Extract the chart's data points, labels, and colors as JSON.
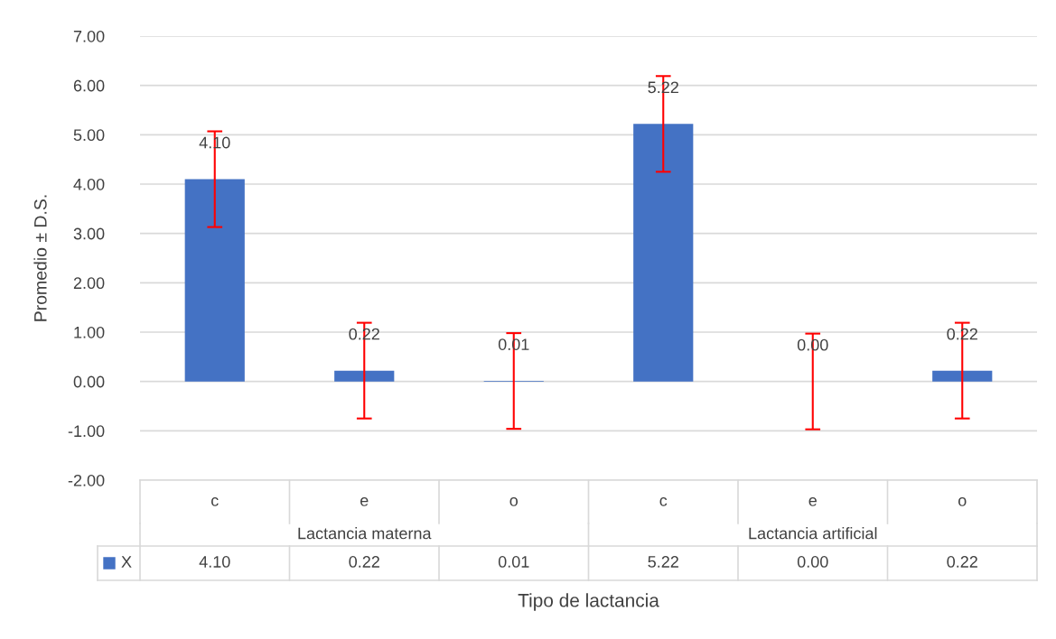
{
  "chart_data": {
    "type": "bar",
    "xlabel": "Tipo de lactancia",
    "ylabel": "Promedio ± D.S.",
    "categories": [
      "c",
      "e",
      "o",
      "c",
      "e",
      "o"
    ],
    "series": [
      {
        "name": "X",
        "color": "#4472c4",
        "values": [
          4.1,
          0.22,
          0.01,
          5.22,
          0.0,
          0.22
        ],
        "errors": [
          0.97,
          0.97,
          0.97,
          0.97,
          0.97,
          0.97
        ],
        "value_labels": [
          "4.10",
          "0.22",
          "0.01",
          "5.22",
          "0.00",
          "0.22"
        ]
      }
    ],
    "annotations": [
      "Lactancia materna",
      "Lactancia artificial"
    ],
    "ylim": [
      -2,
      7
    ],
    "yticks": [
      {
        "value": -2,
        "label": "-2.00"
      },
      {
        "value": -1,
        "label": "-1.00"
      },
      {
        "value": 0,
        "label": "0.00"
      },
      {
        "value": 1,
        "label": "1.00"
      },
      {
        "value": 2,
        "label": "2.00"
      },
      {
        "value": 3,
        "label": "3.00"
      },
      {
        "value": 4,
        "label": "4.00"
      },
      {
        "value": 5,
        "label": "5.00"
      },
      {
        "value": 6,
        "label": "6.00"
      },
      {
        "value": 7,
        "label": "7.00"
      }
    ],
    "grid": "y",
    "legend": "bottom left"
  }
}
